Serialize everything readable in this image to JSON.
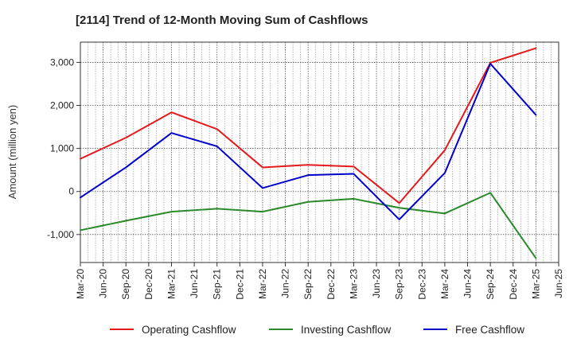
{
  "chart_data": {
    "type": "line",
    "title": "[2114]  Trend of 12-Month Moving Sum of Cashflows",
    "xlabel": "",
    "ylabel": "Amount (million yen)",
    "ylim": [
      -1650,
      3470
    ],
    "yticks": [
      -1000,
      0,
      1000,
      2000,
      3000
    ],
    "ytick_labels": [
      "-1,000",
      "0",
      "1,000",
      "2,000",
      "3,000"
    ],
    "categories": [
      "Mar-20",
      "Jun-20",
      "Sep-20",
      "Dec-20",
      "Mar-21",
      "Jun-21",
      "Sep-21",
      "Dec-21",
      "Mar-22",
      "Jun-22",
      "Sep-22",
      "Dec-22",
      "Mar-23",
      "Jun-23",
      "Sep-23",
      "Dec-23",
      "Mar-24",
      "Jun-24",
      "Sep-24",
      "Dec-24",
      "Mar-25",
      "Jun-25"
    ],
    "grid": true,
    "legend_position": "bottom",
    "series": [
      {
        "name": "Operating Cashflow",
        "color": "#e31a1c",
        "points": [
          [
            "Mar-20",
            760
          ],
          [
            "Sep-20",
            1250
          ],
          [
            "Mar-21",
            1840
          ],
          [
            "Sep-21",
            1450
          ],
          [
            "Mar-22",
            560
          ],
          [
            "Sep-22",
            620
          ],
          [
            "Mar-23",
            580
          ],
          [
            "Sep-23",
            -270
          ],
          [
            "Mar-24",
            960
          ],
          [
            "Sep-24",
            2990
          ],
          [
            "Mar-25",
            3330
          ]
        ]
      },
      {
        "name": "Investing Cashflow",
        "color": "#2a8a2a",
        "points": [
          [
            "Mar-20",
            -900
          ],
          [
            "Sep-20",
            -680
          ],
          [
            "Mar-21",
            -470
          ],
          [
            "Sep-21",
            -400
          ],
          [
            "Mar-22",
            -470
          ],
          [
            "Sep-22",
            -240
          ],
          [
            "Mar-23",
            -170
          ],
          [
            "Sep-23",
            -380
          ],
          [
            "Mar-24",
            -510
          ],
          [
            "Sep-24",
            -30
          ],
          [
            "Mar-25",
            -1550
          ]
        ]
      },
      {
        "name": "Free Cashflow",
        "color": "#0000cc",
        "points": [
          [
            "Mar-20",
            -140
          ],
          [
            "Sep-20",
            560
          ],
          [
            "Mar-21",
            1360
          ],
          [
            "Sep-21",
            1050
          ],
          [
            "Mar-22",
            80
          ],
          [
            "Sep-22",
            380
          ],
          [
            "Mar-23",
            410
          ],
          [
            "Sep-23",
            -650
          ],
          [
            "Mar-24",
            430
          ],
          [
            "Sep-24",
            2970
          ],
          [
            "Mar-25",
            1780
          ]
        ]
      }
    ]
  }
}
